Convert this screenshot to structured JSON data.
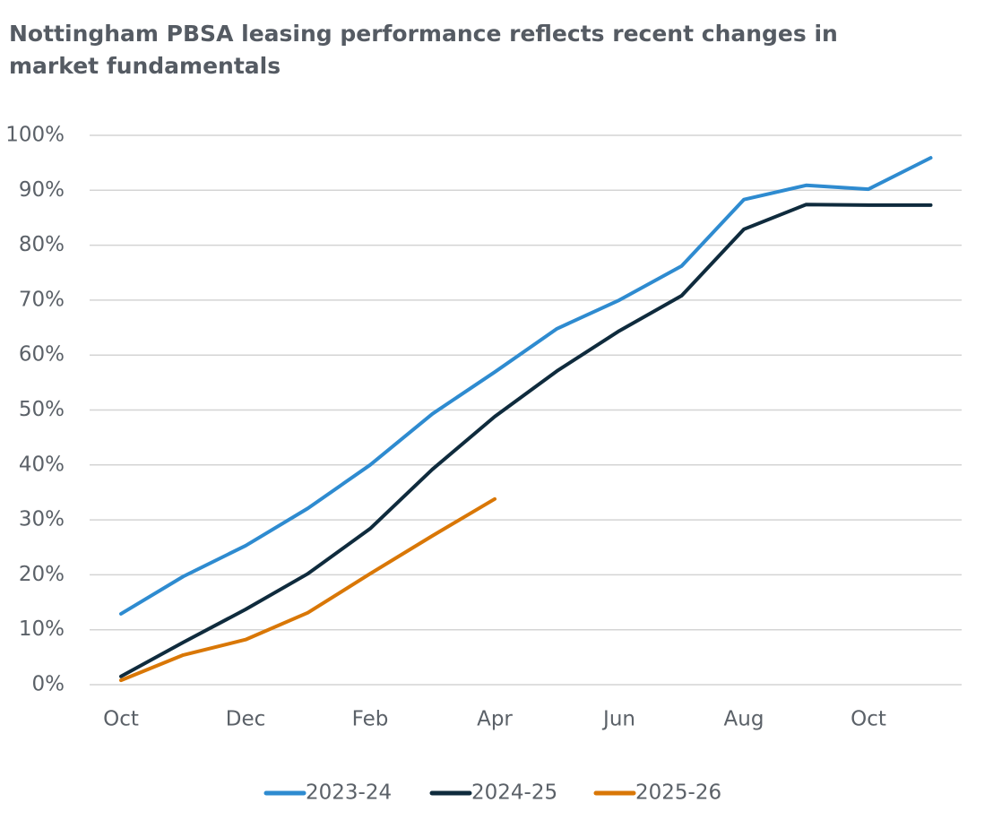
{
  "chart_data": {
    "type": "line",
    "title": [
      "Nottingham PBSA leasing performance reflects recent changes in",
      "market fundamentals"
    ],
    "categories": [
      "Oct",
      null,
      "Dec",
      null,
      "Feb",
      null,
      "Apr",
      null,
      "Jun",
      null,
      "Aug",
      null,
      "Oct",
      null
    ],
    "series": [
      {
        "name": "2023-24",
        "color": "#2e8bd0",
        "values": [
          12.9,
          19.7,
          25.3,
          32.1,
          40.0,
          49.3,
          56.9,
          64.8,
          70.0,
          76.2,
          88.3,
          90.9,
          90.2,
          95.9
        ]
      },
      {
        "name": "2024-25",
        "color": "#0f2b3d",
        "values": [
          1.5,
          7.7,
          13.7,
          20.2,
          28.4,
          39.2,
          48.8,
          57.1,
          64.4,
          70.8,
          82.9,
          87.4,
          87.3,
          87.3
        ]
      },
      {
        "name": "2025-26",
        "color": "#d97706",
        "values": [
          0.8,
          5.4,
          8.2,
          13.1,
          20.2,
          27.1,
          33.8,
          null,
          null,
          null,
          null,
          null,
          null,
          null
        ]
      }
    ],
    "ylim": [
      0,
      100
    ],
    "yticks": [
      {
        "value": 0,
        "label": "0%"
      },
      {
        "value": 10,
        "label": "10%"
      },
      {
        "value": 20,
        "label": "20%"
      },
      {
        "value": 30,
        "label": "30%"
      },
      {
        "value": 40,
        "label": "40%"
      },
      {
        "value": 50,
        "label": "50%"
      },
      {
        "value": 60,
        "label": "60%"
      },
      {
        "value": 70,
        "label": "70%"
      },
      {
        "value": 80,
        "label": "80%"
      },
      {
        "value": 90,
        "label": "90%"
      },
      {
        "value": 100,
        "label": "100%"
      }
    ],
    "grid": true,
    "legend": "bottom"
  }
}
